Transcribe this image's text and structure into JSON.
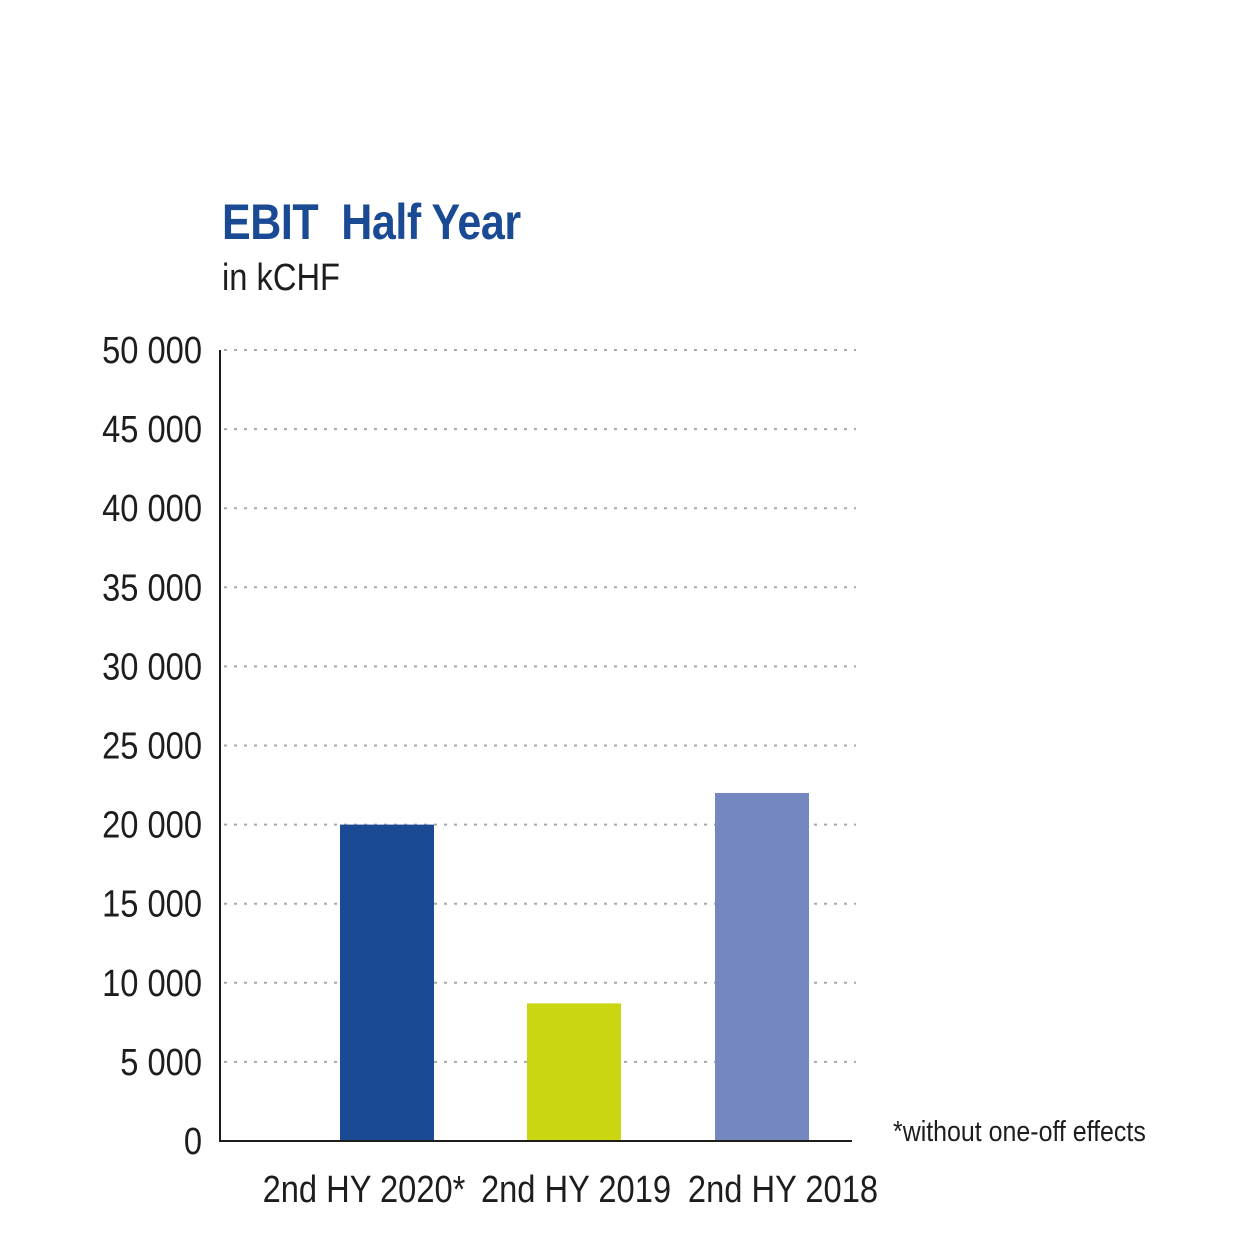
{
  "chart_data": {
    "type": "bar",
    "title": "EBIT  Half Year",
    "subtitle": "in kCHF",
    "categories": [
      "2nd HY 2020*",
      "2nd HY 2019",
      "2nd HY 2018"
    ],
    "values": [
      20000,
      8700,
      22000
    ],
    "ylim": [
      0,
      50000
    ],
    "yticks": [
      0,
      5000,
      10000,
      15000,
      20000,
      25000,
      30000,
      35000,
      40000,
      45000,
      50000
    ],
    "ytick_labels": [
      "0",
      "5 000",
      "10 000",
      "15 000",
      "20 000",
      "25 000",
      "30 000",
      "35 000",
      "40 000",
      "45 000",
      "50 000"
    ],
    "grid": "dotted horizontal",
    "colors": [
      "#1b4a95",
      "#cad60f",
      "#7587c0"
    ],
    "annotation": "*without one-off effects"
  }
}
